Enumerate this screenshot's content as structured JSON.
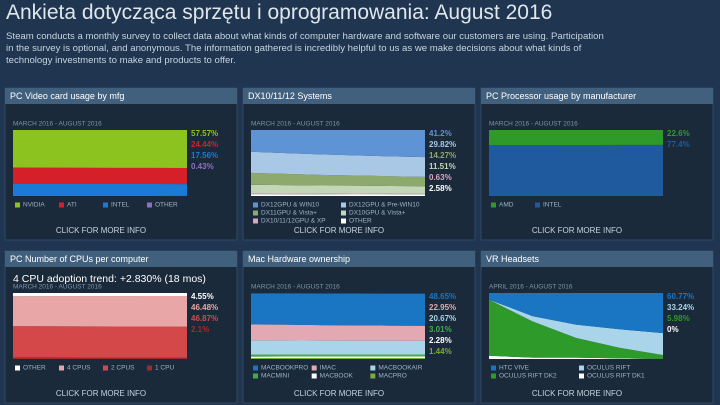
{
  "header": {
    "title": "Ankieta dotycząca sprzętu i oprogramowania: August 2016",
    "description": "Steam conducts a monthly survey to collect data about what kinds of computer hardware and software our customers are using. Participation in the survey is optional, and anonymous. The information gathered is incredibly helpful to us as we make decisions about what kinds of technology investments to make and products to offer."
  },
  "chart_data": [
    {
      "type": "area",
      "stacked": true,
      "title": "PC Video card usage by mfg",
      "period": "MARCH 2016 - AUGUST 2016",
      "categories": [
        null,
        null,
        null,
        null,
        null,
        null
      ],
      "ylim": [
        0,
        100
      ],
      "series": [
        {
          "name": "NVIDIA",
          "color": "#8cc31f",
          "values": [
            56.8,
            57.0,
            57.2,
            57.3,
            57.4,
            57.57
          ],
          "value_labels": [
            null,
            null,
            null,
            null,
            null,
            "57.57%"
          ]
        },
        {
          "name": "ATI",
          "color": "#d5202a",
          "values": [
            25.0,
            24.9,
            24.7,
            24.6,
            24.5,
            24.44
          ],
          "value_labels": [
            null,
            null,
            null,
            null,
            null,
            "24.44%"
          ]
        },
        {
          "name": "INTEL",
          "color": "#1a7bd6",
          "values": [
            17.7,
            17.6,
            17.6,
            17.6,
            17.6,
            17.56
          ],
          "value_labels": [
            null,
            null,
            null,
            null,
            null,
            "17.56%"
          ]
        },
        {
          "name": "OTHER",
          "color": "#8f6fc3",
          "values": [
            0.5,
            0.5,
            0.5,
            0.5,
            0.5,
            0.43
          ],
          "value_labels": [
            null,
            null,
            null,
            null,
            null,
            "0.43%"
          ]
        }
      ],
      "more_info": "CLICK FOR MORE INFO"
    },
    {
      "type": "area",
      "stacked": true,
      "title": "DX10/11/12 Systems",
      "period": "MARCH 2016 - AUGUST 2016",
      "categories": [
        null,
        null,
        null,
        null,
        null,
        null
      ],
      "ylim": [
        0,
        100
      ],
      "series": [
        {
          "name": "DX12GPU & WIN10",
          "color": "#5e94d6",
          "values": [
            33,
            35,
            37,
            38.5,
            40,
            41.2
          ],
          "value_labels": [
            null,
            null,
            null,
            null,
            null,
            "41.2%"
          ]
        },
        {
          "name": "DX12GPU & Pre-WIN10",
          "color": "#a8c8e6",
          "values": [
            32,
            31.5,
            31,
            30.5,
            30,
            29.82
          ],
          "value_labels": [
            null,
            null,
            null,
            null,
            null,
            "29.82%"
          ]
        },
        {
          "name": "DX11GPU & Vista+",
          "color": "#8ea96d",
          "values": [
            18,
            17,
            16,
            15.3,
            14.8,
            14.27
          ],
          "value_labels": [
            null,
            null,
            null,
            null,
            null,
            "14.27%"
          ]
        },
        {
          "name": "DX10GPU & Vista+",
          "color": "#c4d6b8",
          "values": [
            13,
            12.8,
            12.5,
            12,
            11.8,
            11.51
          ],
          "value_labels": [
            null,
            null,
            null,
            null,
            null,
            "11.51%"
          ]
        },
        {
          "name": "DX10/11/12GPU & XP",
          "color": "#d7a7c0",
          "values": [
            1.2,
            1.0,
            0.9,
            0.8,
            0.7,
            0.63
          ],
          "value_labels": [
            null,
            null,
            null,
            null,
            null,
            "0.63%"
          ]
        },
        {
          "name": "OTHER",
          "color": "#ffffff",
          "values": [
            2.8,
            2.7,
            2.6,
            2.9,
            2.7,
            2.58
          ],
          "value_labels": [
            null,
            null,
            null,
            null,
            null,
            "2.58%"
          ]
        }
      ],
      "more_info": "CLICK FOR MORE INFO"
    },
    {
      "type": "area",
      "stacked": true,
      "title": "PC Processor usage by manufacturer",
      "period": "MARCH 2016 - AUGUST 2016",
      "categories": [
        null,
        null,
        null,
        null,
        null,
        null
      ],
      "ylim": [
        0,
        100
      ],
      "series": [
        {
          "name": "AMD",
          "color": "#2e9a2a",
          "values": [
            23.0,
            22.9,
            22.8,
            22.7,
            22.6,
            22.6
          ],
          "value_labels": [
            null,
            null,
            null,
            null,
            null,
            "22.6%"
          ]
        },
        {
          "name": "INTEL",
          "color": "#1f5a9e",
          "values": [
            77.0,
            77.1,
            77.2,
            77.3,
            77.4,
            77.4
          ],
          "value_labels": [
            null,
            null,
            null,
            null,
            null,
            "77.4%"
          ]
        }
      ],
      "more_info": "CLICK FOR MORE INFO"
    },
    {
      "type": "area",
      "stacked": true,
      "title": "PC Number of CPUs per computer",
      "subtitle": "4 CPU adoption trend: +2.830% (18 mos)",
      "period": "MARCH 2016 - AUGUST 2016",
      "categories": [
        null,
        null,
        null,
        null,
        null,
        null
      ],
      "ylim": [
        0,
        100
      ],
      "series": [
        {
          "name": "OTHER",
          "color": "#ffffff",
          "values": [
            4.9,
            4.8,
            4.7,
            4.7,
            4.6,
            4.55
          ],
          "value_labels": [
            null,
            null,
            null,
            null,
            null,
            "4.55%"
          ]
        },
        {
          "name": "4 CPUS",
          "color": "#e8a6a6",
          "values": [
            45.2,
            45.5,
            45.8,
            46.0,
            46.2,
            46.48
          ],
          "value_labels": [
            null,
            null,
            null,
            null,
            null,
            "46.48%"
          ]
        },
        {
          "name": "2 CPUS",
          "color": "#d5484a",
          "values": [
            47.5,
            47.3,
            47.2,
            47.1,
            47.0,
            46.87
          ],
          "value_labels": [
            null,
            null,
            null,
            null,
            null,
            "46.87%"
          ]
        },
        {
          "name": "1 CPU",
          "color": "#a02b2b",
          "values": [
            2.4,
            2.4,
            2.3,
            2.2,
            2.2,
            2.1
          ],
          "value_labels": [
            null,
            null,
            null,
            null,
            null,
            "2.1%"
          ]
        }
      ],
      "more_info": "CLICK FOR MORE INFO"
    },
    {
      "type": "area",
      "stacked": true,
      "title": "Mac Hardware ownership",
      "period": "MARCH 2016 - AUGUST 2016",
      "categories": [
        null,
        null,
        null,
        null,
        null,
        null
      ],
      "ylim": [
        0,
        100
      ],
      "series": [
        {
          "name": "MACBOOKPRO",
          "color": "#1a75c2",
          "values": [
            47,
            47.5,
            48,
            48.3,
            48.5,
            48.65
          ],
          "value_labels": [
            null,
            null,
            null,
            null,
            null,
            "48.65%"
          ]
        },
        {
          "name": "IMAC",
          "color": "#e3a9b3",
          "values": [
            24,
            23.8,
            23.5,
            23.2,
            23,
            22.95
          ],
          "value_labels": [
            null,
            null,
            null,
            null,
            null,
            "22.95%"
          ]
        },
        {
          "name": "MACBOOKAIR",
          "color": "#a9d4ea",
          "values": [
            21.5,
            21.3,
            21,
            20.9,
            20.8,
            20.67
          ],
          "value_labels": [
            null,
            null,
            null,
            null,
            null,
            "20.67%"
          ]
        },
        {
          "name": "MACMINI",
          "color": "#3fae49",
          "values": [
            3.3,
            3.2,
            3.1,
            3.1,
            3.0,
            3.01
          ],
          "value_labels": [
            null,
            null,
            null,
            null,
            null,
            "3.01%"
          ]
        },
        {
          "name": "MACBOOK",
          "color": "#ffffff",
          "values": [
            2.0,
            2.1,
            2.2,
            2.2,
            2.3,
            2.28
          ],
          "value_labels": [
            null,
            null,
            null,
            null,
            null,
            "2.28%"
          ]
        },
        {
          "name": "MACPRO",
          "color": "#7cab3c",
          "values": [
            1.6,
            1.6,
            1.5,
            1.5,
            1.5,
            1.44
          ],
          "value_labels": [
            null,
            null,
            null,
            null,
            null,
            "1.44%"
          ]
        }
      ],
      "more_info": "CLICK FOR MORE INFO"
    },
    {
      "type": "area",
      "stacked": true,
      "title": "VR Headsets",
      "period": "APRIL 2016 - AUGUST 2016",
      "categories": [
        null,
        null,
        null,
        null,
        null
      ],
      "ylim": [
        0,
        100
      ],
      "series": [
        {
          "name": "HTC VIVE",
          "color": "#1a75c2",
          "values": [
            10,
            35,
            48,
            55,
            60.77
          ],
          "value_labels": [
            null,
            null,
            null,
            null,
            "60.77%"
          ]
        },
        {
          "name": "OCULUS RIFT",
          "color": "#a9d4ea",
          "values": [
            0,
            8,
            20,
            28,
            33.24
          ],
          "value_labels": [
            null,
            null,
            null,
            null,
            "33.24%"
          ]
        },
        {
          "name": "OCULUS RIFT DK2",
          "color": "#2e9a2a",
          "values": [
            85,
            55,
            30,
            16,
            5.98
          ],
          "value_labels": [
            null,
            null,
            null,
            null,
            "5.98%"
          ]
        },
        {
          "name": "OCULUS RIFT DK1",
          "color": "#ffffff",
          "values": [
            5,
            2,
            2,
            1,
            0
          ],
          "value_labels": [
            null,
            null,
            null,
            null,
            "0%"
          ]
        }
      ],
      "more_info": "CLICK FOR MORE INFO"
    }
  ]
}
